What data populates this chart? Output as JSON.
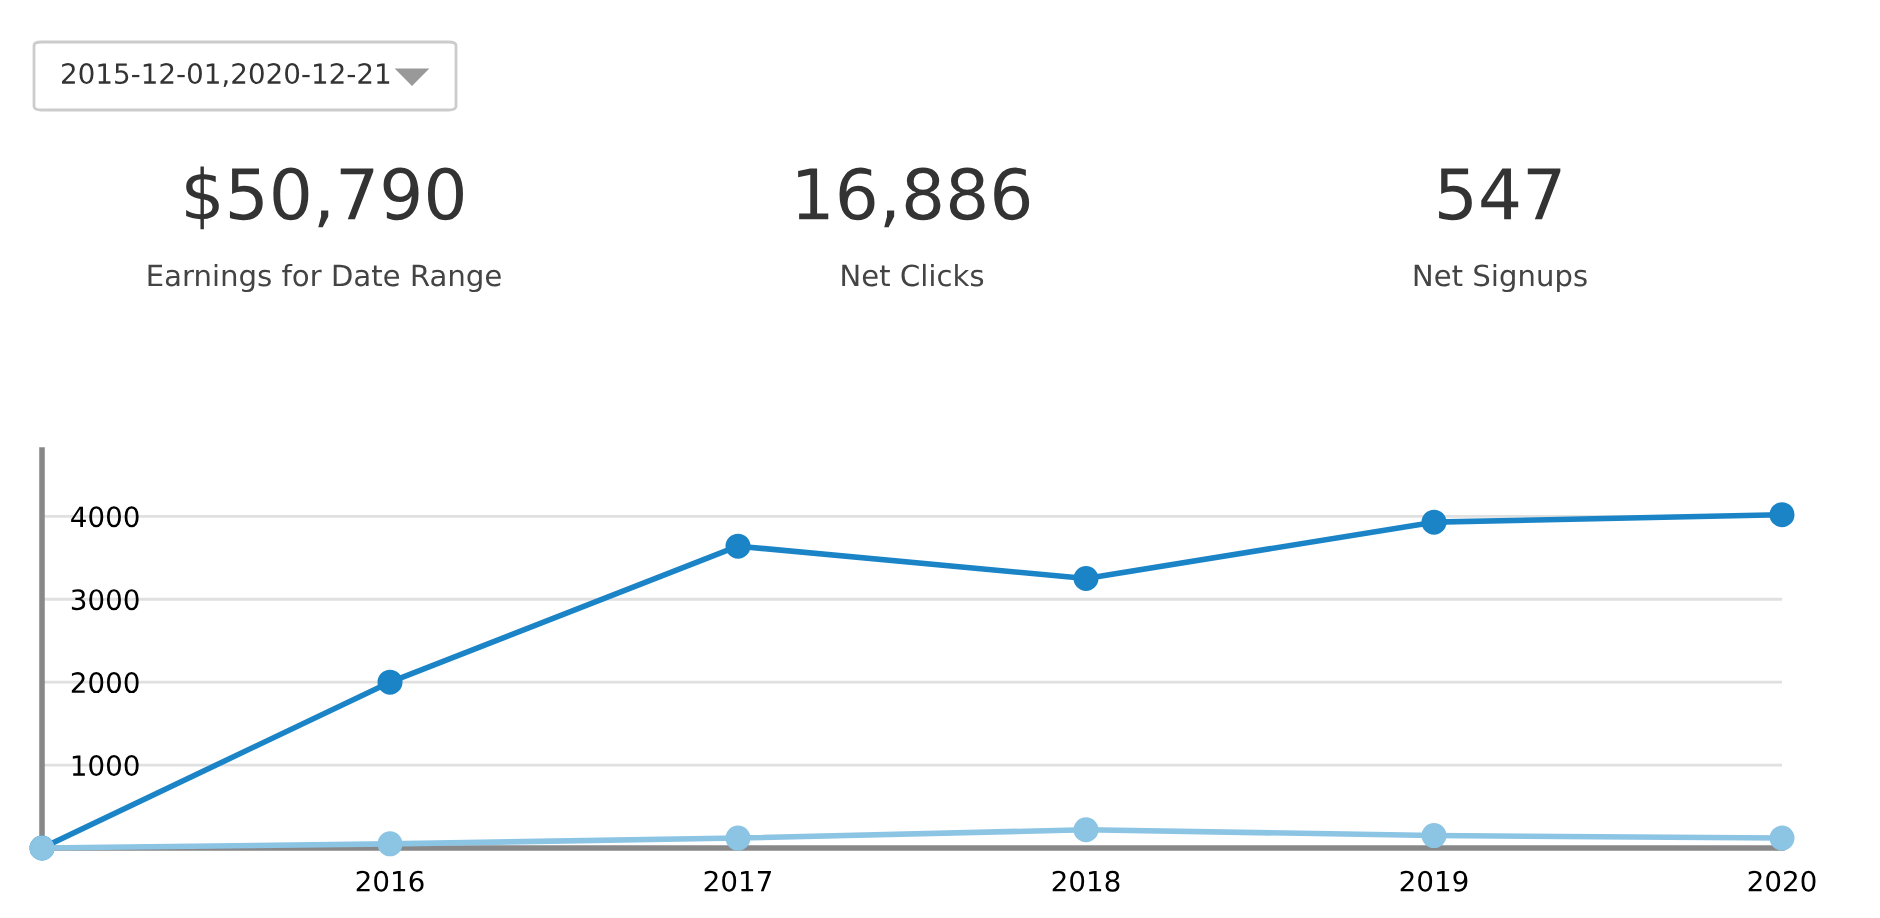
{
  "chart_data": [
    {
      "type": "other",
      "annotations": [
        "2015-12-01,2020-12-21",
        "$50,790",
        "Earnings for Date Range",
        "16,886",
        "Net Clicks",
        "547",
        "Net Signups"
      ]
    },
    {
      "type": "line",
      "x": [
        2015,
        2016,
        2017,
        2018,
        2019,
        2020
      ],
      "series": [
        {
          "color": "#1a84c7",
          "values": [
            0,
            2000,
            3640,
            3250,
            3930,
            4020
          ]
        },
        {
          "color": "#8cc4e4",
          "values": [
            0,
            50,
            120,
            220,
            150,
            120
          ]
        }
      ],
      "xlim": [
        2015,
        2020
      ],
      "xticks": [
        {
          "value": 2015,
          "label": null
        },
        2016,
        2017,
        2018,
        2019,
        2020
      ],
      "ylim": [
        0,
        4800
      ],
      "yticks": [
        {
          "value": 0,
          "label": null
        },
        1000,
        2000,
        3000,
        4000
      ],
      "grid": "y",
      "marker": "circle",
      "line_style": "solid"
    }
  ]
}
